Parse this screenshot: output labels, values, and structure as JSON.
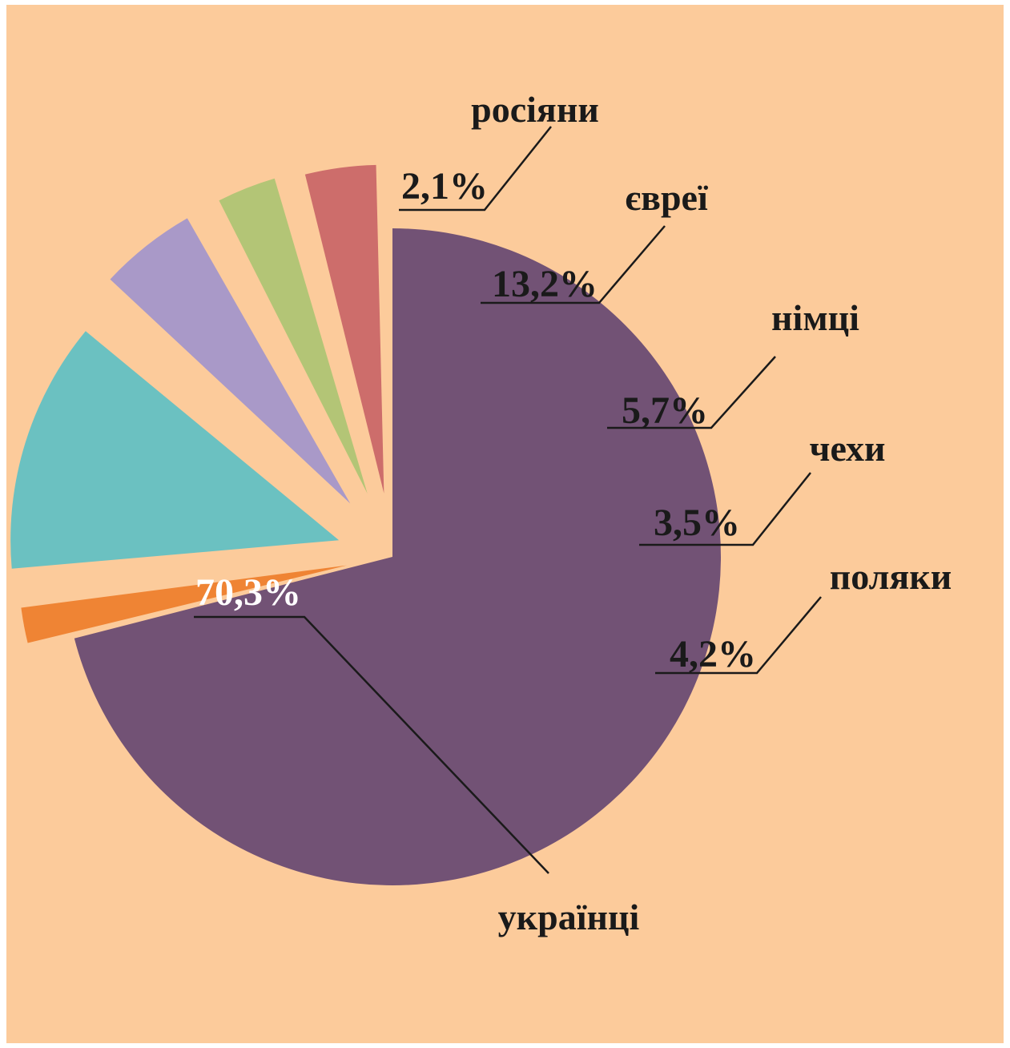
{
  "chart_data": {
    "type": "pie",
    "title": "",
    "exploded": true,
    "legend": "none",
    "slices": [
      {
        "label": "українці",
        "value": 70.3,
        "value_label": "70,3%",
        "color": "#725275",
        "label_color": "#ffffff"
      },
      {
        "label": "росіяни",
        "value": 2.1,
        "value_label": "2,1%",
        "color": "#ef8434",
        "label_color": "#1a1a1a"
      },
      {
        "label": "євреї",
        "value": 13.2,
        "value_label": "13,2%",
        "color": "#6bc1c1",
        "label_color": "#1a1a1a"
      },
      {
        "label": "німці",
        "value": 5.7,
        "value_label": "5,7%",
        "color": "#a999c8",
        "label_color": "#1a1a1a"
      },
      {
        "label": "чехи",
        "value": 3.5,
        "value_label": "3,5%",
        "color": "#b3c576",
        "label_color": "#1a1a1a"
      },
      {
        "label": "поляки",
        "value": 4.2,
        "value_label": "4,2%",
        "color": "#cd6d6b",
        "label_color": "#1a1a1a"
      }
    ]
  },
  "colors": {
    "background": "#fccb9b",
    "leader_line": "#1a1a1a"
  }
}
